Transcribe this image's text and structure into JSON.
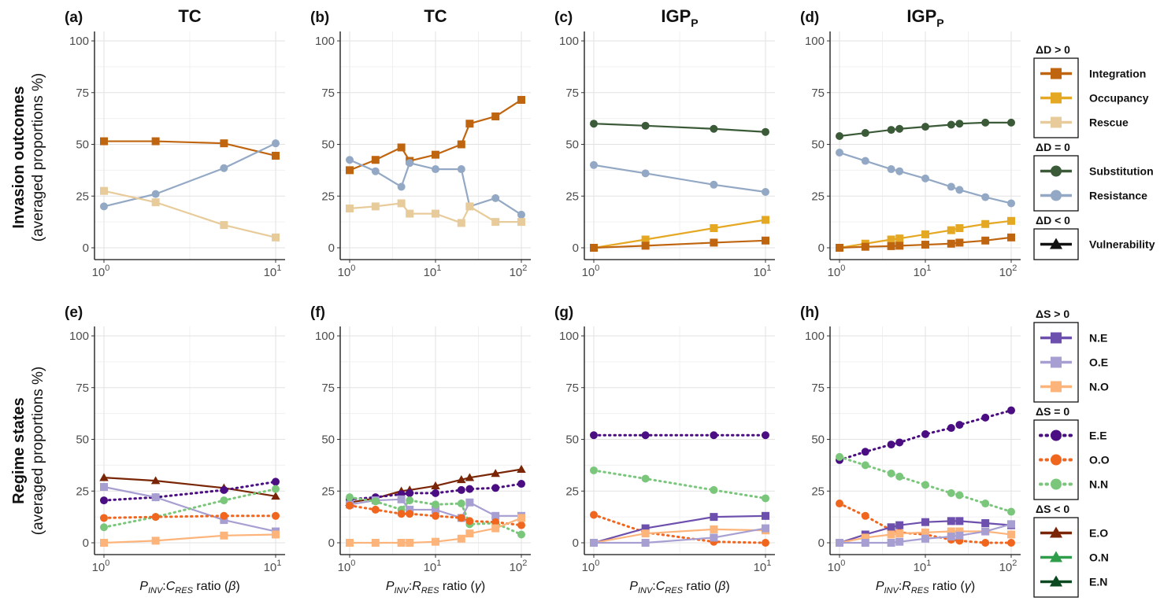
{
  "row_labels": {
    "top": {
      "main": "Invasion outcomes",
      "sub": "(averaged proportions %)"
    },
    "bottom": {
      "main": "Regime states",
      "sub": "(averaged proportions %)"
    }
  },
  "x_labels": {
    "beta": {
      "p": "P",
      "p_sub": "INV",
      "sep": ":",
      "c": "C",
      "c_sub": "RES",
      "ratio": " ratio (",
      "sym": "β",
      "close": ")"
    },
    "gamma": {
      "p": "P",
      "p_sub": "INV",
      "sep": ":",
      "c": "R",
      "c_sub": "RES",
      "ratio": " ratio (",
      "sym": "γ",
      "close": ")"
    }
  },
  "y_ticks": [
    "0",
    "25",
    "50",
    "75",
    "100"
  ],
  "x_ticks_beta": [
    {
      "base": "10",
      "exp": "0"
    },
    {
      "base": "10",
      "exp": "1"
    }
  ],
  "x_ticks_gamma": [
    {
      "base": "10",
      "exp": "0"
    },
    {
      "base": "10",
      "exp": "1"
    },
    {
      "base": "10",
      "exp": "2"
    }
  ],
  "colors": {
    "Integration": "#c0650f",
    "Occupancy": "#e5a823",
    "Rescue": "#e8cb9a",
    "Substitution": "#3b5a38",
    "Resistance": "#92a8c4",
    "Vulnerability": "#111111",
    "N.E": "#6d4fad",
    "O.E": "#a79ed1",
    "N.O": "#fcb47b",
    "E.E": "#4a0d82",
    "O.O": "#f0661f",
    "N.N": "#7ac77b",
    "E.O": "#7a2606",
    "O.N": "#2e9e4a",
    "E.N": "#0b4a20"
  },
  "legend_top": {
    "groups": [
      {
        "title": "ΔD > 0",
        "items": [
          {
            "name": "Integration",
            "marker": "square",
            "dash": "solid"
          },
          {
            "name": "Occupancy",
            "marker": "square",
            "dash": "solid"
          },
          {
            "name": "Rescue",
            "marker": "square",
            "dash": "solid"
          }
        ]
      },
      {
        "title": "ΔD = 0",
        "items": [
          {
            "name": "Substitution",
            "marker": "circle",
            "dash": "solid"
          },
          {
            "name": "Resistance",
            "marker": "circle",
            "dash": "solid"
          }
        ]
      },
      {
        "title": "ΔD < 0",
        "items": [
          {
            "name": "Vulnerability",
            "marker": "triangle",
            "dash": "solid"
          }
        ]
      }
    ]
  },
  "legend_bottom": {
    "groups": [
      {
        "title": "ΔS > 0",
        "items": [
          {
            "name": "N.E",
            "marker": "square",
            "dash": "solid"
          },
          {
            "name": "O.E",
            "marker": "square",
            "dash": "solid"
          },
          {
            "name": "N.O",
            "marker": "square",
            "dash": "solid"
          }
        ]
      },
      {
        "title": "ΔS = 0",
        "items": [
          {
            "name": "E.E",
            "marker": "circle",
            "dash": "dotted"
          },
          {
            "name": "O.O",
            "marker": "circle",
            "dash": "dotted"
          },
          {
            "name": "N.N",
            "marker": "circle",
            "dash": "dotted"
          }
        ]
      },
      {
        "title": "ΔS < 0",
        "items": [
          {
            "name": "E.O",
            "marker": "triangle",
            "dash": "solid"
          },
          {
            "name": "O.N",
            "marker": "triangle",
            "dash": "solid"
          },
          {
            "name": "E.N",
            "marker": "triangle",
            "dash": "solid"
          }
        ]
      }
    ]
  },
  "chart_data": [
    {
      "type": "line",
      "panel": "(a)",
      "title": "TC",
      "title_sub": "",
      "x_scale": "log",
      "xlim": [
        1,
        10
      ],
      "ylim": [
        0,
        100
      ],
      "grid": true,
      "series": [
        {
          "name": "Integration",
          "marker": "square",
          "dash": "solid",
          "x": [
            1,
            2,
            5,
            10
          ],
          "y": [
            51.5,
            51.5,
            50.5,
            44.5
          ]
        },
        {
          "name": "Resistance",
          "marker": "circle",
          "dash": "solid",
          "x": [
            1,
            2,
            5,
            10
          ],
          "y": [
            20,
            26,
            38.5,
            50.5
          ]
        },
        {
          "name": "Rescue",
          "marker": "square",
          "dash": "solid",
          "x": [
            1,
            2,
            5,
            10
          ],
          "y": [
            27.5,
            22,
            11,
            5
          ]
        }
      ]
    },
    {
      "type": "line",
      "panel": "(b)",
      "title": "TC",
      "title_sub": "",
      "x_scale": "log",
      "xlim": [
        1,
        100
      ],
      "ylim": [
        0,
        100
      ],
      "grid": true,
      "series": [
        {
          "name": "Integration",
          "marker": "square",
          "dash": "solid",
          "x": [
            1,
            2,
            4,
            5,
            10,
            20,
            25,
            50,
            100
          ],
          "y": [
            37.5,
            42.5,
            48.5,
            42,
            45,
            50,
            60,
            63.5,
            71.5
          ]
        },
        {
          "name": "Resistance",
          "marker": "circle",
          "dash": "solid",
          "x": [
            1,
            2,
            4,
            5,
            10,
            20,
            25,
            50,
            100
          ],
          "y": [
            42.5,
            37,
            29.5,
            41,
            38,
            38,
            20,
            24,
            16
          ]
        },
        {
          "name": "Rescue",
          "marker": "square",
          "dash": "solid",
          "x": [
            1,
            2,
            4,
            5,
            10,
            20,
            25,
            50,
            100
          ],
          "y": [
            19,
            20,
            21.5,
            16.5,
            16.5,
            12,
            20,
            12.5,
            12.5
          ]
        }
      ]
    },
    {
      "type": "line",
      "panel": "(c)",
      "title": "IGP",
      "title_sub": "P",
      "x_scale": "log",
      "xlim": [
        1,
        10
      ],
      "ylim": [
        0,
        100
      ],
      "grid": true,
      "series": [
        {
          "name": "Substitution",
          "marker": "circle",
          "dash": "solid",
          "x": [
            1,
            2,
            5,
            10
          ],
          "y": [
            60,
            59,
            57.5,
            56
          ]
        },
        {
          "name": "Resistance",
          "marker": "circle",
          "dash": "solid",
          "x": [
            1,
            2,
            5,
            10
          ],
          "y": [
            40,
            36,
            30.5,
            27
          ]
        },
        {
          "name": "Occupancy",
          "marker": "square",
          "dash": "solid",
          "x": [
            1,
            2,
            5,
            10
          ],
          "y": [
            0,
            4,
            9.5,
            13.5
          ]
        },
        {
          "name": "Integration",
          "marker": "square",
          "dash": "solid",
          "x": [
            1,
            2,
            5,
            10
          ],
          "y": [
            0,
            1,
            2.5,
            3.5
          ]
        }
      ]
    },
    {
      "type": "line",
      "panel": "(d)",
      "title": "IGP",
      "title_sub": "P",
      "x_scale": "log",
      "xlim": [
        1,
        100
      ],
      "ylim": [
        0,
        100
      ],
      "grid": true,
      "series": [
        {
          "name": "Substitution",
          "marker": "circle",
          "dash": "solid",
          "x": [
            1,
            2,
            4,
            5,
            10,
            20,
            25,
            50,
            100
          ],
          "y": [
            54,
            55.5,
            57,
            57.5,
            58.5,
            59.5,
            60,
            60.5,
            60.5
          ]
        },
        {
          "name": "Resistance",
          "marker": "circle",
          "dash": "solid",
          "x": [
            1,
            2,
            4,
            5,
            10,
            20,
            25,
            50,
            100
          ],
          "y": [
            46,
            42,
            38,
            37,
            33.5,
            29.5,
            28,
            24.5,
            21.5
          ]
        },
        {
          "name": "Occupancy",
          "marker": "square",
          "dash": "solid",
          "x": [
            1,
            2,
            4,
            5,
            10,
            20,
            25,
            50,
            100
          ],
          "y": [
            0,
            2,
            4,
            4.5,
            6.5,
            8.5,
            9.5,
            11.5,
            13
          ]
        },
        {
          "name": "Integration",
          "marker": "square",
          "dash": "solid",
          "x": [
            1,
            2,
            4,
            5,
            10,
            20,
            25,
            50,
            100
          ],
          "y": [
            0,
            0.5,
            0.8,
            1,
            1.5,
            2,
            2.5,
            3.5,
            5
          ]
        }
      ]
    },
    {
      "type": "line",
      "panel": "(e)",
      "title": "",
      "title_sub": "",
      "x_scale": "log",
      "xlim": [
        1,
        10
      ],
      "ylim": [
        0,
        100
      ],
      "grid": true,
      "series": [
        {
          "name": "E.O",
          "marker": "triangle",
          "dash": "solid",
          "x": [
            1,
            2,
            5,
            10
          ],
          "y": [
            31.5,
            30,
            26.5,
            22.5
          ]
        },
        {
          "name": "E.E",
          "marker": "circle",
          "dash": "dotted",
          "x": [
            1,
            2,
            5,
            10
          ],
          "y": [
            20.5,
            22,
            25.5,
            29.5
          ]
        },
        {
          "name": "O.E",
          "marker": "square",
          "dash": "solid",
          "x": [
            1,
            2,
            5,
            10
          ],
          "y": [
            27,
            22,
            11,
            5.5
          ]
        },
        {
          "name": "N.N",
          "marker": "circle",
          "dash": "dotted",
          "x": [
            1,
            2,
            5,
            10
          ],
          "y": [
            7.5,
            12.5,
            20.5,
            26
          ]
        },
        {
          "name": "O.O",
          "marker": "circle",
          "dash": "dotted",
          "x": [
            1,
            2,
            5,
            10
          ],
          "y": [
            12,
            12.5,
            13,
            13
          ]
        },
        {
          "name": "N.O",
          "marker": "square",
          "dash": "solid",
          "x": [
            1,
            2,
            5,
            10
          ],
          "y": [
            0,
            1,
            3.5,
            4
          ]
        }
      ]
    },
    {
      "type": "line",
      "panel": "(f)",
      "title": "",
      "title_sub": "",
      "x_scale": "log",
      "xlim": [
        1,
        100
      ],
      "ylim": [
        0,
        100
      ],
      "grid": true,
      "series": [
        {
          "name": "E.O",
          "marker": "triangle",
          "dash": "solid",
          "x": [
            1,
            2,
            4,
            5,
            10,
            20,
            25,
            50,
            100
          ],
          "y": [
            19.5,
            21.5,
            25,
            25.5,
            27.5,
            30.5,
            31.5,
            33.5,
            35.5
          ]
        },
        {
          "name": "E.E",
          "marker": "circle",
          "dash": "dotted",
          "x": [
            1,
            2,
            4,
            5,
            10,
            20,
            25,
            50,
            100
          ],
          "y": [
            21,
            22,
            23.5,
            24,
            24,
            25.5,
            26,
            26.5,
            28.5
          ]
        },
        {
          "name": "O.E",
          "marker": "square",
          "dash": "solid",
          "x": [
            1,
            2,
            4,
            5,
            10,
            20,
            25,
            50,
            100
          ],
          "y": [
            18.5,
            20.5,
            21,
            16,
            16,
            12,
            19.5,
            13,
            13
          ]
        },
        {
          "name": "N.N",
          "marker": "circle",
          "dash": "dotted",
          "x": [
            1,
            2,
            4,
            5,
            10,
            20,
            25,
            50,
            100
          ],
          "y": [
            22,
            20,
            16,
            20.5,
            18.5,
            19,
            9,
            9.5,
            4
          ]
        },
        {
          "name": "O.O",
          "marker": "circle",
          "dash": "dotted",
          "x": [
            1,
            2,
            4,
            5,
            10,
            20,
            25,
            50,
            100
          ],
          "y": [
            18,
            16,
            14,
            14,
            13,
            12,
            10.5,
            10,
            8.5
          ]
        },
        {
          "name": "N.O",
          "marker": "square",
          "dash": "solid",
          "x": [
            1,
            2,
            4,
            5,
            10,
            20,
            25,
            50,
            100
          ],
          "y": [
            0,
            0,
            0,
            0,
            0.5,
            2,
            4.5,
            7,
            12
          ]
        }
      ]
    },
    {
      "type": "line",
      "panel": "(g)",
      "title": "",
      "title_sub": "",
      "x_scale": "log",
      "xlim": [
        1,
        10
      ],
      "ylim": [
        0,
        100
      ],
      "grid": true,
      "series": [
        {
          "name": "E.E",
          "marker": "circle",
          "dash": "dotted",
          "x": [
            1,
            2,
            5,
            10
          ],
          "y": [
            52,
            52,
            52,
            52
          ]
        },
        {
          "name": "N.N",
          "marker": "circle",
          "dash": "dotted",
          "x": [
            1,
            2,
            5,
            10
          ],
          "y": [
            35,
            31,
            25.5,
            21.5
          ]
        },
        {
          "name": "O.O",
          "marker": "circle",
          "dash": "dotted",
          "x": [
            1,
            2,
            5,
            10
          ],
          "y": [
            13.5,
            5,
            0.5,
            0
          ]
        },
        {
          "name": "N.E",
          "marker": "square",
          "dash": "solid",
          "x": [
            1,
            2,
            5,
            10
          ],
          "y": [
            0,
            7,
            12.5,
            13
          ]
        },
        {
          "name": "N.O",
          "marker": "square",
          "dash": "solid",
          "x": [
            1,
            2,
            5,
            10
          ],
          "y": [
            0,
            4.5,
            6.5,
            6
          ]
        },
        {
          "name": "O.E",
          "marker": "square",
          "dash": "solid",
          "x": [
            1,
            2,
            5,
            10
          ],
          "y": [
            0,
            0,
            2.5,
            7
          ]
        }
      ]
    },
    {
      "type": "line",
      "panel": "(h)",
      "title": "",
      "title_sub": "",
      "x_scale": "log",
      "xlim": [
        1,
        100
      ],
      "ylim": [
        0,
        100
      ],
      "grid": true,
      "series": [
        {
          "name": "E.E",
          "marker": "circle",
          "dash": "dotted",
          "x": [
            1,
            2,
            4,
            5,
            10,
            20,
            25,
            50,
            100
          ],
          "y": [
            40,
            44,
            47.5,
            48.5,
            52.5,
            55.5,
            57,
            60.5,
            64
          ]
        },
        {
          "name": "N.N",
          "marker": "circle",
          "dash": "dotted",
          "x": [
            1,
            2,
            4,
            5,
            10,
            20,
            25,
            50,
            100
          ],
          "y": [
            41.5,
            37.5,
            33.5,
            32,
            28,
            24,
            23,
            19,
            15
          ]
        },
        {
          "name": "O.O",
          "marker": "circle",
          "dash": "dotted",
          "x": [
            1,
            2,
            4,
            5,
            10,
            20,
            25,
            50,
            100
          ],
          "y": [
            19,
            13,
            6,
            5,
            4,
            1.5,
            1,
            0,
            0
          ]
        },
        {
          "name": "N.E",
          "marker": "square",
          "dash": "solid",
          "x": [
            1,
            2,
            4,
            5,
            10,
            20,
            25,
            50,
            100
          ],
          "y": [
            0,
            4,
            7.5,
            8.5,
            10,
            10.5,
            10.5,
            9.5,
            8.5
          ]
        },
        {
          "name": "N.O",
          "marker": "square",
          "dash": "solid",
          "x": [
            1,
            2,
            4,
            5,
            10,
            20,
            25,
            50,
            100
          ],
          "y": [
            0,
            2.5,
            4,
            4.5,
            5,
            5.5,
            5.5,
            5.5,
            4
          ]
        },
        {
          "name": "O.E",
          "marker": "square",
          "dash": "solid",
          "x": [
            1,
            2,
            4,
            5,
            10,
            20,
            25,
            50,
            100
          ],
          "y": [
            0,
            0,
            0,
            0.5,
            2,
            3,
            3.5,
            5.5,
            9
          ]
        }
      ]
    }
  ]
}
